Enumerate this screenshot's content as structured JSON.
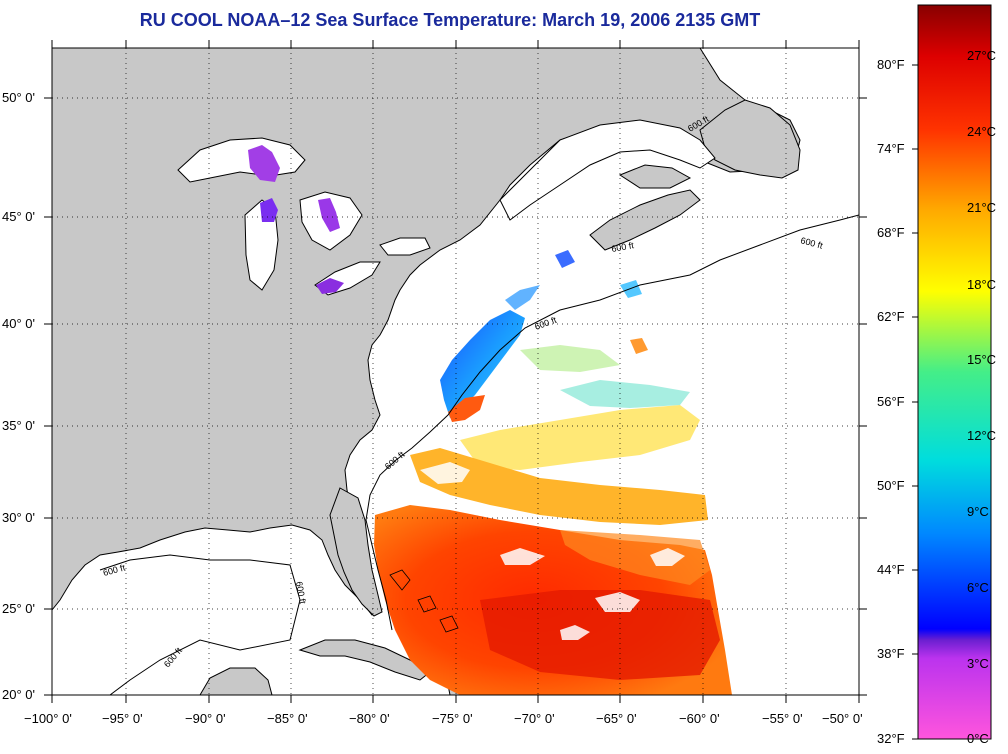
{
  "title": "RU COOL  NOAA–12  Sea Surface Temperature:  March 19, 2006 2135 GMT",
  "lat_labels": [
    "50° 0'",
    "45° 0'",
    "40° 0'",
    "35° 0'",
    "30° 0'",
    "25° 0'",
    "20° 0'"
  ],
  "lon_labels": [
    "−100° 0'",
    "−95° 0'",
    "−90° 0'",
    "−85° 0'",
    "−80° 0'",
    "−75° 0'",
    "−70° 0'",
    "−65° 0'",
    "−60° 0'",
    "−55° 0'",
    "−50° 0'"
  ],
  "contour_label": "600 ft",
  "colorbar": {
    "fahrenheit": [
      "80°F",
      "74°F",
      "68°F",
      "62°F",
      "56°F",
      "50°F",
      "44°F",
      "38°F",
      "32°F"
    ],
    "celsius": [
      "27°C",
      "24°C",
      "21°C",
      "18°C",
      "15°C",
      "12°C",
      "9°C",
      "6°C",
      "3°C",
      "0°C"
    ]
  },
  "colors": {
    "title": "#1a2a9c",
    "land": "#c8c8c8",
    "ocean": "#ffffff"
  }
}
